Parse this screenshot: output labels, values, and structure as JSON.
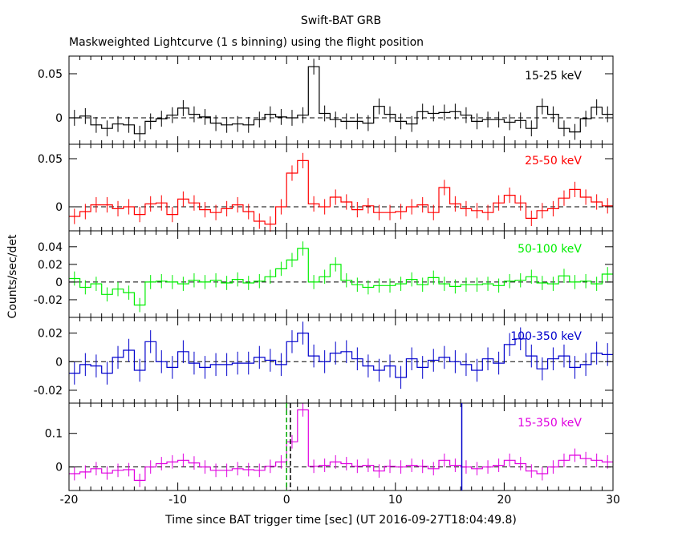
{
  "title": "Swift-BAT GRB",
  "subtitle": "Maskweighted Lightcurve (1 s binning) using the flight position",
  "xlabel": "Time since BAT trigger time [sec] (UT 2016-09-27T18:04:49.8)",
  "ylabel": "Counts/sec/det",
  "chart_data": {
    "type": "line",
    "xlim": [
      -20,
      30
    ],
    "x_ticks": [
      -20,
      -10,
      0,
      10,
      20,
      30
    ],
    "x_tick_labels": [
      "-20",
      "-10",
      "0",
      "10",
      "20",
      "30"
    ],
    "bin_start": -20,
    "bin_width": 1,
    "markers": [
      {
        "x": 0.0,
        "color": "#00aa00",
        "style": "dashed"
      },
      {
        "x": 0.35,
        "color": "#000000",
        "style": "dashed"
      },
      {
        "x": 16.1,
        "color": "#0000cc",
        "style": "solid"
      }
    ],
    "panels": [
      {
        "name": "15-25 keV",
        "color": "#000000",
        "ylim": [
          -0.03,
          0.07
        ],
        "yticks": [
          0,
          0.05
        ],
        "ytick_labels": [
          "0",
          "0.05"
        ],
        "values": [
          0.0,
          0.002,
          -0.008,
          -0.012,
          -0.007,
          -0.008,
          -0.018,
          -0.004,
          -0.001,
          0.003,
          0.011,
          0.004,
          0.001,
          -0.006,
          -0.008,
          -0.007,
          -0.008,
          -0.002,
          0.004,
          0.001,
          0.0,
          0.003,
          0.058,
          0.005,
          -0.002,
          -0.004,
          -0.004,
          -0.006,
          0.013,
          0.004,
          -0.004,
          -0.007,
          0.007,
          0.005,
          0.006,
          0.007,
          0.003,
          -0.004,
          -0.002,
          -0.002,
          -0.005,
          -0.003,
          -0.012,
          0.013,
          0.004,
          -0.012,
          -0.016,
          -0.001,
          0.012,
          0.004,
          0.001
        ],
        "errors": 0.009
      },
      {
        "name": "25-50 keV",
        "color": "#ff0000",
        "ylim": [
          -0.025,
          0.065
        ],
        "yticks": [
          0,
          0.05
        ],
        "ytick_labels": [
          "0",
          "0.05"
        ],
        "values": [
          -0.01,
          -0.005,
          0.002,
          0.002,
          -0.002,
          0.0,
          -0.008,
          0.003,
          0.004,
          -0.008,
          0.008,
          0.004,
          -0.003,
          -0.006,
          -0.002,
          0.002,
          -0.005,
          -0.015,
          -0.018,
          0.0,
          0.035,
          0.048,
          0.003,
          0.0,
          0.01,
          0.005,
          -0.003,
          0.001,
          -0.006,
          -0.006,
          -0.005,
          0.0,
          0.002,
          -0.006,
          0.02,
          0.003,
          -0.002,
          -0.004,
          -0.006,
          0.004,
          0.012,
          0.004,
          -0.012,
          -0.004,
          -0.002,
          0.009,
          0.018,
          0.01,
          0.005,
          0.001,
          -0.003
        ],
        "errors": 0.008
      },
      {
        "name": "50-100 keV",
        "color": "#00ee00",
        "ylim": [
          -0.04,
          0.058
        ],
        "yticks": [
          -0.02,
          0,
          0.02,
          0.04
        ],
        "ytick_labels": [
          "-0.02",
          "0",
          "0.02",
          "0.04"
        ],
        "values": [
          0.004,
          -0.006,
          -0.002,
          -0.014,
          -0.008,
          -0.012,
          -0.026,
          0.0,
          0.001,
          0.0,
          -0.002,
          0.002,
          0.0,
          0.002,
          -0.001,
          0.003,
          -0.001,
          0.001,
          0.006,
          0.015,
          0.025,
          0.038,
          0.0,
          0.006,
          0.02,
          0.002,
          -0.003,
          -0.006,
          -0.004,
          -0.004,
          -0.002,
          0.003,
          -0.003,
          0.005,
          -0.002,
          -0.005,
          -0.003,
          -0.003,
          -0.002,
          -0.004,
          0.001,
          0.002,
          0.006,
          -0.001,
          -0.002,
          0.007,
          0.0,
          0.001,
          -0.002,
          0.009,
          0.003
        ],
        "errors": 0.008
      },
      {
        "name": "100-350 keV",
        "color": "#0000cc",
        "ylim": [
          -0.029,
          0.031
        ],
        "yticks": [
          -0.02,
          0,
          0.02
        ],
        "ytick_labels": [
          "-0.02",
          "0",
          "0.02"
        ],
        "values": [
          -0.008,
          -0.002,
          -0.003,
          -0.008,
          0.003,
          0.008,
          -0.006,
          0.014,
          0.0,
          -0.004,
          0.007,
          -0.001,
          -0.004,
          -0.002,
          -0.002,
          -0.001,
          -0.001,
          0.003,
          0.001,
          -0.002,
          0.014,
          0.02,
          0.004,
          0.0,
          0.006,
          0.007,
          0.002,
          -0.003,
          -0.006,
          -0.003,
          -0.011,
          0.002,
          -0.004,
          0.001,
          0.003,
          0.0,
          -0.002,
          -0.006,
          0.002,
          -0.001,
          0.012,
          0.016,
          0.004,
          -0.005,
          0.002,
          0.004,
          -0.004,
          -0.002,
          0.006,
          0.005,
          0.005
        ],
        "errors": 0.008
      },
      {
        "name": "15-350 keV",
        "color": "#e000e0",
        "ylim": [
          -0.07,
          0.19
        ],
        "yticks": [
          0,
          0.1
        ],
        "ytick_labels": [
          "0",
          "0.1"
        ],
        "values": [
          -0.02,
          -0.015,
          -0.005,
          -0.018,
          -0.01,
          -0.008,
          -0.04,
          0.0,
          0.01,
          0.015,
          0.02,
          0.012,
          0.0,
          -0.01,
          -0.01,
          -0.005,
          -0.008,
          -0.01,
          0.002,
          0.015,
          0.075,
          0.17,
          0.002,
          0.005,
          0.015,
          0.01,
          0.002,
          0.005,
          -0.012,
          0.002,
          0.0,
          0.005,
          0.002,
          -0.005,
          0.02,
          0.005,
          0.0,
          -0.005,
          0.0,
          0.005,
          0.02,
          0.01,
          -0.012,
          -0.02,
          0.0,
          0.02,
          0.035,
          0.025,
          0.02,
          0.015,
          0.01
        ],
        "errors": 0.02
      }
    ]
  }
}
